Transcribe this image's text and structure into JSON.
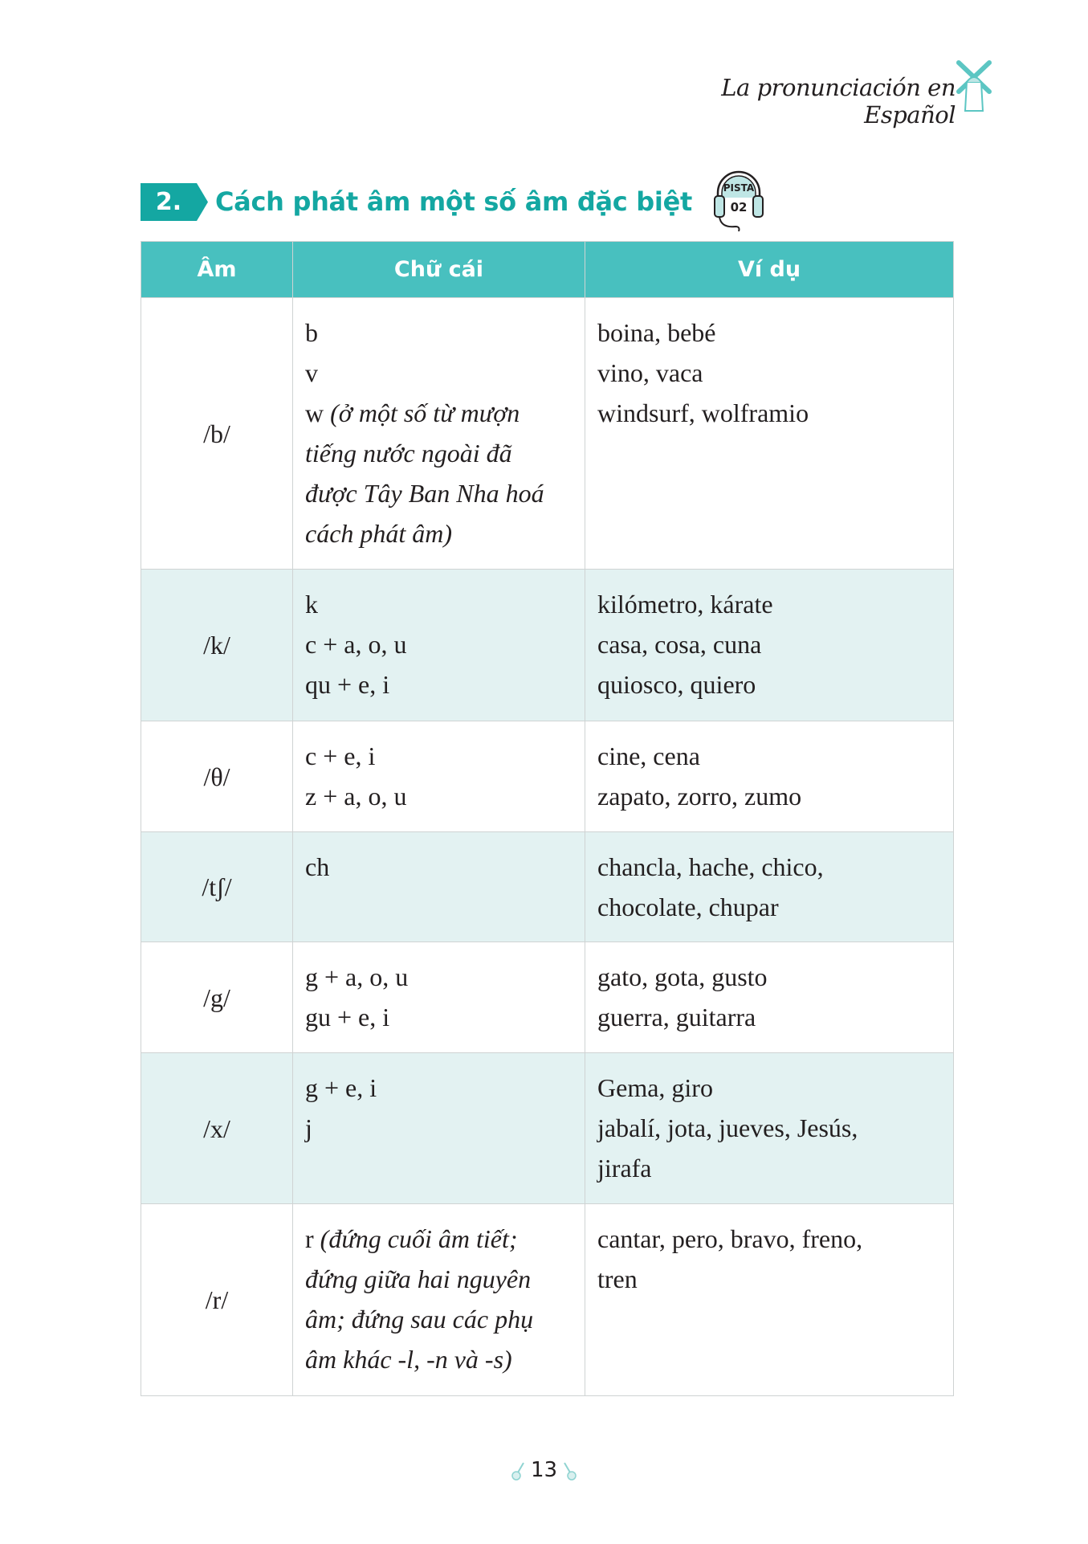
{
  "header": {
    "running_title": "La pronunciación en Español",
    "icon": "windmill-icon"
  },
  "section": {
    "number": "2.",
    "title": "Cách phát âm một số âm đặc biệt",
    "audio_badge": {
      "label": "PISTA",
      "track": "02",
      "icon": "headphones-icon"
    }
  },
  "colors": {
    "accent": "#14a7a2",
    "header_bg": "#48c0bf",
    "row_shade": "#e3f2f2",
    "border": "#cfd3d3"
  },
  "table": {
    "columns": [
      "Âm",
      "Chữ cái",
      "Ví dụ"
    ],
    "rows": [
      {
        "sound": "/b/",
        "shaded": false,
        "letters": [
          [
            {
              "t": "b"
            }
          ],
          [
            {
              "t": "v"
            }
          ],
          [
            {
              "t": "w "
            },
            {
              "t": "(ở một số từ mượn",
              "i": true
            }
          ],
          [
            {
              "t": "tiếng nước ngoài đã",
              "i": true
            }
          ],
          [
            {
              "t": "được Tây Ban Nha hoá",
              "i": true
            }
          ],
          [
            {
              "t": "cách phát âm)",
              "i": true
            }
          ]
        ],
        "examples": [
          "boina, bebé",
          "vino, vaca",
          "windsurf, wolframio"
        ]
      },
      {
        "sound": "/k/",
        "shaded": true,
        "letters": [
          [
            {
              "t": "k"
            }
          ],
          [
            {
              "t": "c + a, o, u"
            }
          ],
          [
            {
              "t": "qu + e, i"
            }
          ]
        ],
        "examples": [
          "kilómetro, kárate",
          "casa, cosa, cuna",
          "quiosco, quiero"
        ]
      },
      {
        "sound": "/θ/",
        "shaded": false,
        "letters": [
          [
            {
              "t": "c + e, i"
            }
          ],
          [
            {
              "t": "z + a, o, u"
            }
          ]
        ],
        "examples": [
          "cine, cena",
          "zapato, zorro, zumo"
        ]
      },
      {
        "sound": "/tʃ/",
        "shaded": true,
        "letters": [
          [
            {
              "t": "ch"
            }
          ]
        ],
        "examples": [
          "chancla, hache, chico,",
          "chocolate, chupar"
        ]
      },
      {
        "sound": "/g/",
        "shaded": false,
        "letters": [
          [
            {
              "t": "g + a, o, u"
            }
          ],
          [
            {
              "t": "gu + e, i"
            }
          ]
        ],
        "examples": [
          "gato, gota, gusto",
          "guerra, guitarra"
        ]
      },
      {
        "sound": "/x/",
        "shaded": true,
        "letters": [
          [
            {
              "t": "g + e, i"
            }
          ],
          [
            {
              "t": "j"
            }
          ]
        ],
        "examples": [
          "Gema, giro",
          "jabalí, jota, jueves, Jesús,",
          "jirafa"
        ]
      },
      {
        "sound": "/r/",
        "shaded": false,
        "letters": [
          [
            {
              "t": "r "
            },
            {
              "t": "(đứng cuối âm tiết;",
              "i": true
            }
          ],
          [
            {
              "t": "đứng giữa hai nguyên",
              "i": true
            }
          ],
          [
            {
              "t": "âm; đứng sau các phụ",
              "i": true
            }
          ],
          [
            {
              "t": "âm khác -l, -n và -s)",
              "i": true
            }
          ]
        ],
        "examples": [
          "cantar, pero, bravo, freno,",
          "tren"
        ]
      }
    ]
  },
  "footer": {
    "page_number": "13",
    "icon": "guitar-icon"
  }
}
